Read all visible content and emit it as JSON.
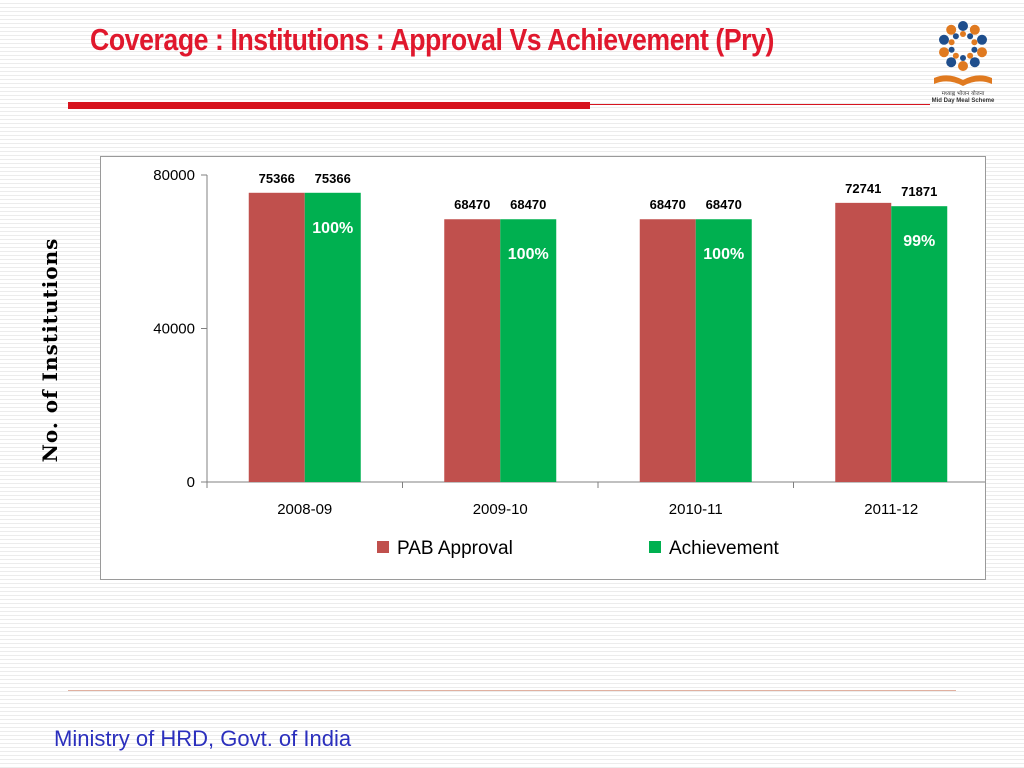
{
  "slide": {
    "title": "Coverage : Institutions : Approval Vs Achievement (Pry)",
    "footer": "Ministry of HRD, Govt. of India"
  },
  "logo": {
    "icon": "mid-day-meal-scheme-logo",
    "text_hindi": "मध्याह्न भोजन योजना",
    "text_en": "Mid Day Meal Scheme"
  },
  "chart_data": {
    "type": "bar",
    "title": "",
    "xlabel": "",
    "ylabel": "No. of Institutions",
    "categories": [
      "2008-09",
      "2009-10",
      "2010-11",
      "2011-12"
    ],
    "series": [
      {
        "name": "PAB Approval",
        "values": [
          75366,
          68470,
          68470,
          72741
        ],
        "color": "#c0504d"
      },
      {
        "name": "Achievement",
        "values": [
          75366,
          68470,
          68470,
          71871
        ],
        "color": "#00b050"
      }
    ],
    "percent_labels": [
      "100%",
      "100%",
      "100%",
      "99%"
    ],
    "ylim": [
      0,
      80000
    ],
    "yticks": [
      0,
      40000,
      80000
    ],
    "legend": "bottom",
    "grid": false
  }
}
